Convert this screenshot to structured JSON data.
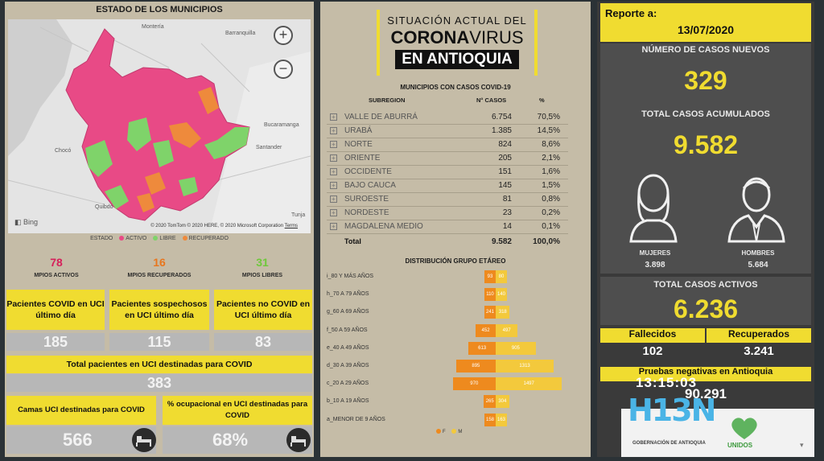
{
  "map": {
    "title": "ESTADO DE LOS MUNICIPIOS",
    "zoom_in": "+",
    "zoom_out": "−",
    "labels": [
      "Montería",
      "Barranquilla",
      "Bucaramanga",
      "Chocó",
      "Quibdó",
      "Tunja",
      "Santander"
    ],
    "credit": "© 2020 TomTom © 2020 HERE, © 2020 Microsoft Corporation",
    "terms": "Terms",
    "bing": "Bing",
    "legend_title": "ESTADO",
    "legend": [
      {
        "label": "ACTIVO",
        "color": "#e84a86"
      },
      {
        "label": "LIBRE",
        "color": "#7fd36a"
      },
      {
        "label": "RECUPERADO",
        "color": "#ee8a3c"
      }
    ]
  },
  "municipios": [
    {
      "value": "78",
      "label": "MPIOS ACTIVOS",
      "color": "#d61f5a"
    },
    {
      "value": "16",
      "label": "MPIOS RECUPERADOS",
      "color": "#e8761e"
    },
    {
      "value": "31",
      "label": "MPIOS LIBRES",
      "color": "#6fc83c"
    }
  ],
  "uci": [
    {
      "label": "Pacientes COVID en UCI último día",
      "value": "185"
    },
    {
      "label": "Pacientes sospechosos en UCI último día",
      "value": "115"
    },
    {
      "label": "Pacientes no COVID en UCI último día",
      "value": "83"
    }
  ],
  "uci_total": {
    "label": "Total pacientes en UCI destinadas para COVID",
    "value": "383"
  },
  "camas": {
    "label": "Camas UCI destinadas para COVID",
    "value": "566"
  },
  "ocupacion": {
    "label": "% ocupacional en UCI destinadas para COVID",
    "value": "68%"
  },
  "header": {
    "line1": "SITUACIÓN ACTUAL DEL",
    "line2a": "CORONA",
    "line2b": "VIRUS",
    "line3": "EN ANTIOQUIA"
  },
  "table": {
    "title": "MUNICIPIOS CON CASOS COVID-19",
    "col_subregion": "SUBREGION",
    "col_casos": "N° CASOS",
    "col_pct": "%",
    "rows": [
      {
        "subregion": "VALLE DE ABURRÁ",
        "casos": "6.754",
        "pct": "70,5%"
      },
      {
        "subregion": "URABÁ",
        "casos": "1.385",
        "pct": "14,5%"
      },
      {
        "subregion": "NORTE",
        "casos": "824",
        "pct": "8,6%"
      },
      {
        "subregion": "ORIENTE",
        "casos": "205",
        "pct": "2,1%"
      },
      {
        "subregion": "OCCIDENTE",
        "casos": "151",
        "pct": "1,6%"
      },
      {
        "subregion": "BAJO CAUCA",
        "casos": "145",
        "pct": "1,5%"
      },
      {
        "subregion": "SUROESTE",
        "casos": "81",
        "pct": "0,8%"
      },
      {
        "subregion": "NORDESTE",
        "casos": "23",
        "pct": "0,2%"
      },
      {
        "subregion": "MAGDALENA MEDIO",
        "casos": "14",
        "pct": "0,1%"
      }
    ],
    "total_label": "Total",
    "total_casos": "9.582",
    "total_pct": "100,0%"
  },
  "chart_data": {
    "type": "bar",
    "title": "DISTRIBUCIÓN GRUPO ETÁREO",
    "categories": [
      "i_80 Y MÁS AÑOS",
      "h_70 A 79 AÑOS",
      "g_60 A 69 AÑOS",
      "f_50 A 59 AÑOS",
      "e_40 A 49 AÑOS",
      "d_30 A 39 AÑOS",
      "c_20 A 29 AÑOS",
      "b_10 A 19 AÑOS",
      "a_MENOR DE 9 AÑOS"
    ],
    "series": [
      {
        "name": "F",
        "color": "#ee8a1e",
        "values": [
          93,
          110,
          241,
          452,
          613,
          895,
          970,
          265,
          158
        ]
      },
      {
        "name": "M",
        "color": "#f3c93c",
        "values": [
          80,
          140,
          318,
          497,
          905,
          1313,
          1497,
          304,
          163
        ]
      }
    ],
    "legend": "bottom"
  },
  "reporte": {
    "label": "Reporte a:",
    "date": "13/07/2020"
  },
  "casos_nuevos": {
    "label": "NÚMERO DE CASOS NUEVOS",
    "value": "329"
  },
  "acumulados": {
    "label": "TOTAL CASOS ACUMULADOS",
    "value": "9.582"
  },
  "mujeres": {
    "label": "MUJERES",
    "value": "3.898"
  },
  "hombres": {
    "label": "HOMBRES",
    "value": "5.684"
  },
  "activos": {
    "label": "TOTAL CASOS ACTIVOS",
    "value": "6.236"
  },
  "fallecidos": {
    "label": "Fallecidos",
    "value": "102"
  },
  "recuperados": {
    "label": "Recuperados",
    "value": "3.241"
  },
  "pruebas": {
    "label": "Pruebas negativas en Antioquia",
    "value": "90.291"
  },
  "overlay": {
    "clock": "13:15:03",
    "logo": "H13N",
    "gob": "GOBERNACIÓN DE ANTIOQUIA",
    "unidos": "UNIDOS"
  }
}
